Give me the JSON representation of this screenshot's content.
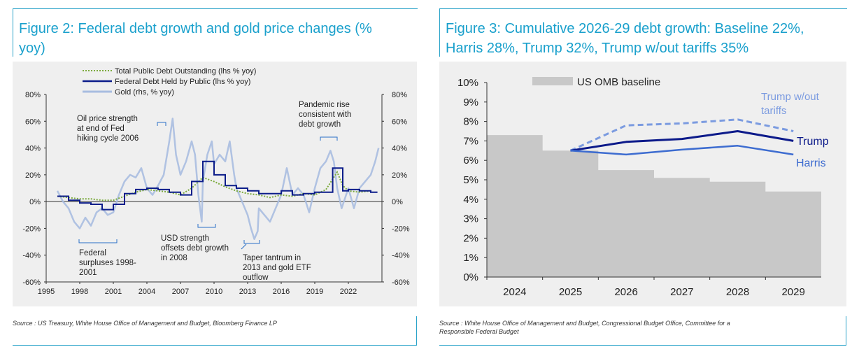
{
  "fig2": {
    "title_line1": "Figure 2: Federal debt growth and gold price changes (%",
    "title_line2": "yoy)",
    "source": "Source : US Treasury, White House Office of Management and Budget, Bloomberg Finance LP",
    "annotations": {
      "oil_1": "Oil price strength",
      "oil_2": "at end of Fed",
      "oil_3": "hiking cycle 2006",
      "pan_1": "Pandemic rise",
      "pan_2": "consistent with",
      "pan_3": "debt growth",
      "usd_1": "USD strength",
      "usd_2": "offsets debt growth",
      "usd_3": "in 2008",
      "fed_1": "Federal",
      "fed_2": "surpluses 1998-",
      "fed_3": "2001",
      "taper_1": "Taper tantrum in",
      "taper_2": "2013 and gold ETF",
      "taper_3": "outflow"
    },
    "chart_data": {
      "type": "line",
      "x_ticks": [
        "1995",
        "1998",
        "2001",
        "2004",
        "2007",
        "2010",
        "2013",
        "2016",
        "2019",
        "2022"
      ],
      "xlim": [
        1995,
        2025
      ],
      "y_left_ticks": [
        "80%",
        "60%",
        "40%",
        "20%",
        "0%",
        "-20%",
        "-40%",
        "-60%"
      ],
      "y_right_ticks": [
        "80%",
        "60%",
        "40%",
        "20%",
        "0%",
        "-20%",
        "-40%",
        "-60%"
      ],
      "ylim": [
        -60,
        80
      ],
      "grid": false,
      "legend_position": "top-center",
      "colors": {
        "total": "#7cab3e",
        "held": "#0c1d8a",
        "gold": "#a8bde0"
      },
      "series": [
        {
          "name": "Total Public Debt Outstanding (lhs % yoy)",
          "style": "dotted",
          "points": [
            [
              1996,
              4
            ],
            [
              1997,
              3
            ],
            [
              1998,
              2
            ],
            [
              1999,
              2
            ],
            [
              2000,
              1
            ],
            [
              2001,
              1
            ],
            [
              2002,
              4
            ],
            [
              2003,
              7
            ],
            [
              2004,
              9
            ],
            [
              2005,
              8
            ],
            [
              2006,
              7
            ],
            [
              2007,
              5
            ],
            [
              2008,
              10
            ],
            [
              2009,
              18
            ],
            [
              2010,
              15
            ],
            [
              2011,
              11
            ],
            [
              2012,
              8
            ],
            [
              2013,
              6
            ],
            [
              2014,
              5
            ],
            [
              2015,
              3
            ],
            [
              2016,
              5
            ],
            [
              2017,
              4
            ],
            [
              2018,
              6
            ],
            [
              2019,
              5
            ],
            [
              2020,
              9
            ],
            [
              2021,
              22
            ],
            [
              2021.5,
              12
            ],
            [
              2022,
              8
            ],
            [
              2023,
              7
            ],
            [
              2024,
              8
            ]
          ]
        },
        {
          "name": "Federal Debt Held by Public (lhs % yoy)",
          "style": "step",
          "points": [
            [
              1996,
              4
            ],
            [
              1997,
              1
            ],
            [
              1998,
              -1
            ],
            [
              1999,
              -2
            ],
            [
              2000,
              -6
            ],
            [
              2001,
              -2
            ],
            [
              2002,
              6
            ],
            [
              2003,
              9
            ],
            [
              2004,
              10
            ],
            [
              2005,
              9
            ],
            [
              2006,
              7
            ],
            [
              2007,
              5
            ],
            [
              2008,
              15
            ],
            [
              2009,
              30
            ],
            [
              2010,
              20
            ],
            [
              2011,
              12
            ],
            [
              2012,
              10
            ],
            [
              2013,
              8
            ],
            [
              2014,
              6
            ],
            [
              2015,
              6
            ],
            [
              2016,
              8
            ],
            [
              2017,
              5
            ],
            [
              2018,
              6
            ],
            [
              2019,
              7
            ],
            [
              2020,
              7
            ],
            [
              2020.6,
              25
            ],
            [
              2021.5,
              8
            ],
            [
              2022,
              9
            ],
            [
              2023,
              8
            ],
            [
              2024,
              7
            ],
            [
              2024.6,
              7
            ]
          ]
        },
        {
          "name": "Gold (rhs, % yoy)",
          "style": "solid",
          "points": [
            [
              1996,
              8
            ],
            [
              1996.5,
              0
            ],
            [
              1997,
              -5
            ],
            [
              1997.5,
              -15
            ],
            [
              1998,
              -20
            ],
            [
              1998.5,
              -12
            ],
            [
              1999,
              -18
            ],
            [
              1999.5,
              -8
            ],
            [
              2000,
              -5
            ],
            [
              2000.5,
              -10
            ],
            [
              2001,
              -8
            ],
            [
              2001.5,
              5
            ],
            [
              2002,
              15
            ],
            [
              2002.5,
              20
            ],
            [
              2003,
              18
            ],
            [
              2003.5,
              25
            ],
            [
              2004,
              10
            ],
            [
              2004.5,
              5
            ],
            [
              2005,
              12
            ],
            [
              2005.5,
              20
            ],
            [
              2006,
              45
            ],
            [
              2006.3,
              62
            ],
            [
              2006.6,
              35
            ],
            [
              2007,
              20
            ],
            [
              2007.5,
              30
            ],
            [
              2008,
              45
            ],
            [
              2008.3,
              35
            ],
            [
              2008.6,
              5
            ],
            [
              2008.9,
              -15
            ],
            [
              2009,
              15
            ],
            [
              2009.4,
              35
            ],
            [
              2009.8,
              45
            ],
            [
              2010,
              28
            ],
            [
              2010.5,
              35
            ],
            [
              2011,
              30
            ],
            [
              2011.4,
              45
            ],
            [
              2011.8,
              20
            ],
            [
              2012,
              10
            ],
            [
              2012.5,
              0
            ],
            [
              2013,
              -10
            ],
            [
              2013.3,
              -20
            ],
            [
              2013.6,
              -28
            ],
            [
              2013.9,
              -22
            ],
            [
              2014,
              -5
            ],
            [
              2014.5,
              -10
            ],
            [
              2015,
              -15
            ],
            [
              2015.5,
              -5
            ],
            [
              2016,
              5
            ],
            [
              2016.5,
              25
            ],
            [
              2017,
              5
            ],
            [
              2017.5,
              10
            ],
            [
              2018,
              5
            ],
            [
              2018.5,
              -8
            ],
            [
              2019,
              10
            ],
            [
              2019.5,
              25
            ],
            [
              2020,
              30
            ],
            [
              2020.4,
              38
            ],
            [
              2020.7,
              30
            ],
            [
              2021,
              10
            ],
            [
              2021.4,
              -5
            ],
            [
              2021.8,
              5
            ],
            [
              2022,
              10
            ],
            [
              2022.5,
              -5
            ],
            [
              2023,
              10
            ],
            [
              2023.5,
              15
            ],
            [
              2024,
              20
            ],
            [
              2024.4,
              30
            ],
            [
              2024.7,
              40
            ]
          ]
        }
      ]
    }
  },
  "fig3": {
    "title_line1": "Figure 3: Cumulative 2026-29 debt growth: Baseline 22%,",
    "title_line2": "Harris 28%, Trump 32%, Trump w/out tariffs 35%",
    "source_line1": "Source : White House Office of Management and Budget, Congressional Budget Office, Committee for a",
    "source_line2": "Responsible Federal Budget",
    "label_trump_wo_1": "Trump w/out",
    "label_trump_wo_2": "tariffs",
    "label_trump": "Trump",
    "label_harris": "Harris",
    "chart_data": {
      "type": "line",
      "categories": [
        "2024",
        "2025",
        "2026",
        "2027",
        "2028",
        "2029"
      ],
      "y_ticks": [
        "10%",
        "9%",
        "8%",
        "7%",
        "6%",
        "5%",
        "4%",
        "3%",
        "2%",
        "1%",
        "0%"
      ],
      "ylim": [
        0,
        10
      ],
      "grid": false,
      "legend_position": "top-left",
      "colors": {
        "baseline": "#c8c8c8",
        "trump_wo": "#7b9be0",
        "trump": "#0c1a8a",
        "harris": "#3d6cd0"
      },
      "series": [
        {
          "name": "US OMB baseline",
          "kind": "area-step",
          "values": [
            7.3,
            6.5,
            5.5,
            5.1,
            4.9,
            4.4
          ]
        },
        {
          "name": "Trump w/out tariffs",
          "kind": "dashed",
          "values": [
            null,
            6.5,
            7.8,
            7.9,
            8.1,
            7.5
          ]
        },
        {
          "name": "Trump",
          "kind": "line",
          "values": [
            null,
            6.5,
            6.95,
            7.1,
            7.5,
            7.0
          ]
        },
        {
          "name": "Harris",
          "kind": "line",
          "values": [
            null,
            6.5,
            6.3,
            6.55,
            6.75,
            6.3
          ]
        }
      ]
    }
  }
}
